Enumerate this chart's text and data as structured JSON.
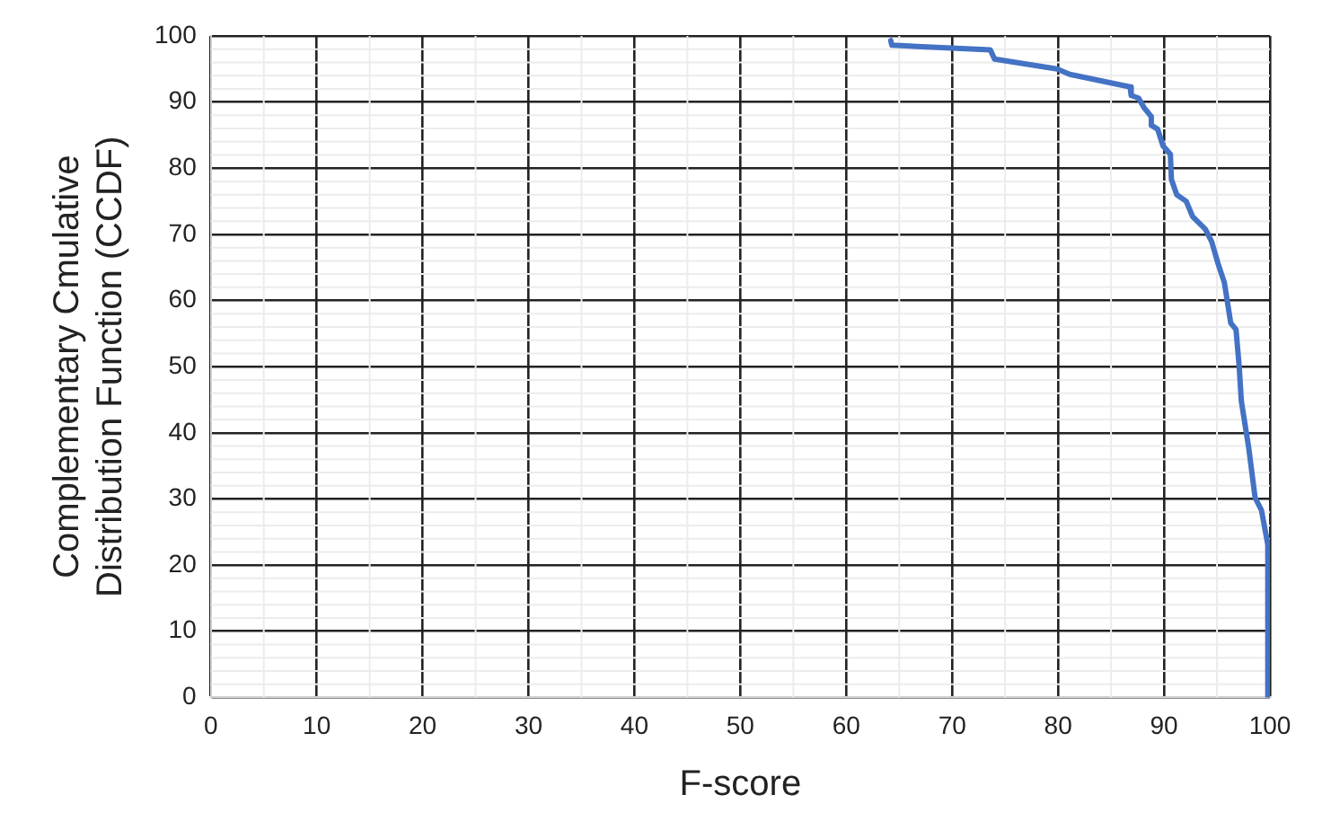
{
  "chart_data": {
    "type": "line",
    "xlabel": "F-score",
    "ylabel": "Complementary Cmulative Distribution Function (CCDF)",
    "xlim": [
      0,
      100
    ],
    "ylim": [
      0,
      100
    ],
    "xticks": [
      0,
      10,
      20,
      30,
      40,
      50,
      60,
      70,
      80,
      90,
      100
    ],
    "yticks": [
      0,
      10,
      20,
      30,
      40,
      50,
      60,
      70,
      80,
      90,
      100
    ],
    "grid": true,
    "legend": false,
    "marker": "none",
    "line_style": "solid",
    "series": [
      {
        "color": "#4472c4",
        "x": [
          64.2,
          64.3,
          73.6,
          74,
          79.9,
          81.1,
          86.8,
          86.9,
          87.6,
          88.1,
          88.8,
          88.8,
          89.4,
          89.9,
          90.6,
          90.7,
          91.2,
          92.1,
          92.7,
          93.9,
          94.5,
          95.1,
          95.7,
          96.3,
          96.8,
          97.1,
          97.3,
          98,
          98.6,
          99.2,
          99.8,
          99.8
        ],
        "values": [
          99.3,
          98.6,
          97.9,
          96.5,
          95,
          94.2,
          92.3,
          91,
          90.6,
          89.2,
          87.8,
          86.5,
          85.9,
          83.4,
          82.1,
          78.3,
          76,
          75,
          72.7,
          70.8,
          68.9,
          65.6,
          62.7,
          56.6,
          55.6,
          50,
          44.8,
          37.7,
          30.2,
          28.3,
          23.1,
          0
        ]
      }
    ]
  }
}
